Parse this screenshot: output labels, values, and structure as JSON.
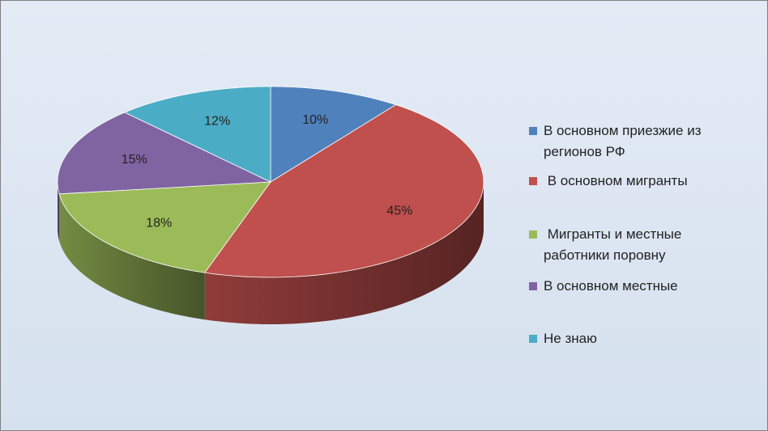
{
  "chart_data": {
    "type": "pie3d",
    "categories": [
      "В основном приезжие из регионов РФ",
      " В основном мигранты",
      " Мигранты и местные работники поровну",
      "В основном местные",
      "Не знаю"
    ],
    "values": [
      10,
      45,
      18,
      15,
      12
    ],
    "value_labels": [
      "10%",
      "45%",
      "18%",
      "15%",
      "12%"
    ],
    "colors": [
      "#4f81bd",
      "#c0504d",
      "#9bbb59",
      "#8064a2",
      "#4bacc6"
    ],
    "legend": "right"
  }
}
